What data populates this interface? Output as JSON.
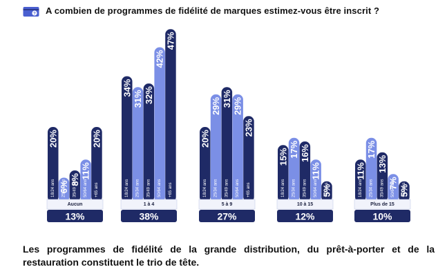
{
  "question": "A combien de programmes de fidélité de marques estimez-vous être inscrit ?",
  "footer_text": "Les programmes de fidélité de la grande distribution, du prêt-à-porter et de la restauration constituent le trio de tête.",
  "colors": {
    "navy": "#1f2a66",
    "periwinkle": "#7b8fe6",
    "label_box_bg": "#f1f3fb",
    "total_bg": "#1f2a66"
  },
  "chart_data": {
    "type": "bar",
    "title": "A combien de programmes de fidélité de marques estimez-vous être inscrit ?",
    "value_suffix": "%",
    "age_groups": [
      "18/24 ans",
      "25/34 ans",
      "35/49 ans",
      "50/64 ans",
      "+65 ans"
    ],
    "bar_colors": [
      "navy",
      "periwinkle",
      "navy",
      "periwinkle",
      "navy"
    ],
    "groups": [
      {
        "category": "Aucun",
        "total": "13%",
        "values": [
          20,
          6,
          8,
          11,
          20
        ]
      },
      {
        "category": "1 à 4",
        "total": "38%",
        "values": [
          34,
          31,
          32,
          42,
          47
        ]
      },
      {
        "category": "5 à 9",
        "total": "27%",
        "values": [
          20,
          29,
          31,
          29,
          23
        ]
      },
      {
        "category": "10 à 15",
        "total": "12%",
        "values": [
          15,
          17,
          16,
          11,
          5
        ]
      },
      {
        "category": "Plus de 15",
        "total": "10%",
        "values": [
          11,
          17,
          13,
          7,
          5
        ]
      }
    ]
  }
}
